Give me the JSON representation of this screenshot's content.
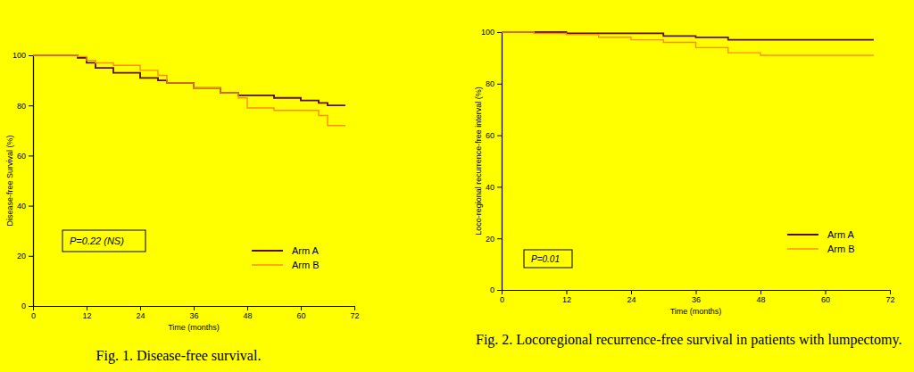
{
  "chart_data": [
    {
      "type": "step",
      "title": "Fig. 1. Disease-free survival.",
      "x_label": "Time (months)",
      "y_label": "Disease-free Survival (%)",
      "annotation": "P=0.22 (NS)",
      "x": [
        0,
        8,
        10,
        12,
        14,
        18,
        24,
        28,
        30,
        36,
        42,
        46,
        48,
        54,
        60,
        64,
        66,
        70
      ],
      "series": [
        {
          "name": "Arm A",
          "color": "#5c0a1e",
          "values": [
            100,
            100,
            99,
            97,
            95,
            93,
            91,
            90,
            89,
            87,
            85,
            84,
            84,
            83,
            82,
            81,
            80,
            80
          ]
        },
        {
          "name": "Arm B",
          "color": "#ff8c1a",
          "values": [
            100,
            100,
            99.5,
            98,
            97,
            96,
            94,
            92,
            89,
            87,
            85,
            83,
            79,
            78,
            78,
            76,
            72,
            72
          ]
        }
      ],
      "xlim": [
        0,
        72
      ],
      "xticks": [
        0,
        12,
        24,
        36,
        48,
        60,
        72
      ],
      "ylim": [
        0,
        100
      ],
      "yticks": [
        0,
        20,
        40,
        60,
        80,
        100
      ],
      "grid": false,
      "legend": "lower right"
    },
    {
      "type": "step",
      "title": "Fig. 2. Locoregional recurrence-free survival in patients with lumpectomy.",
      "x_label": "Time (months)",
      "y_label": "Loco-regional recurrence-free interval (%)",
      "annotation": "P=0.01",
      "x": [
        0,
        6,
        12,
        18,
        24,
        30,
        36,
        42,
        48,
        54,
        60,
        66,
        69
      ],
      "series": [
        {
          "name": "Arm A",
          "color": "#5c0a1e",
          "values": [
            100,
            100,
            99.5,
            99.5,
            99.5,
            98.5,
            98,
            97,
            97,
            97,
            97,
            97,
            97
          ]
        },
        {
          "name": "Arm B",
          "color": "#ff8c1a",
          "values": [
            100,
            99.5,
            99,
            98,
            97,
            96,
            94,
            92,
            91,
            91,
            91,
            91,
            91
          ]
        }
      ],
      "xlim": [
        0,
        72
      ],
      "xticks": [
        0,
        12,
        24,
        36,
        48,
        60,
        72
      ],
      "ylim": [
        0,
        100
      ],
      "yticks": [
        0,
        20,
        40,
        60,
        80,
        100
      ],
      "grid": false,
      "legend": "lower right"
    }
  ]
}
